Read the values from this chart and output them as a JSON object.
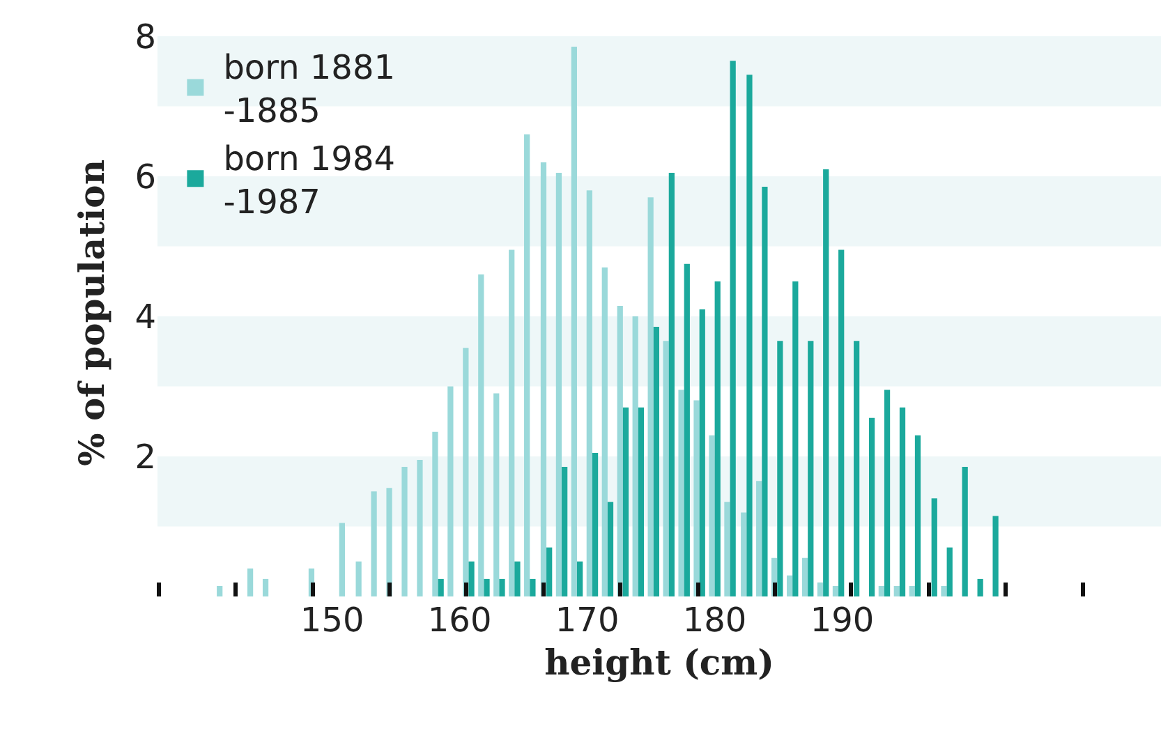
{
  "chart_data": {
    "type": "bar",
    "xlabel": "height (cm)",
    "ylabel": "% of population",
    "x": [
      141.4,
      142.6,
      143.8,
      145.0,
      146.2,
      147.4,
      148.6,
      149.8,
      151.0,
      152.3,
      153.5,
      154.7,
      155.9,
      157.1,
      158.3,
      159.5,
      160.7,
      161.9,
      163.1,
      164.3,
      165.5,
      166.8,
      168.0,
      169.2,
      170.4,
      171.6,
      172.8,
      174.0,
      175.2,
      176.4,
      177.6,
      178.8,
      180.0,
      181.2,
      182.5,
      183.7,
      184.9,
      186.1,
      187.3,
      188.5,
      189.7,
      190.9,
      192.1,
      193.3,
      194.5,
      195.7,
      197.0,
      198.2,
      199.4,
      200.6,
      201.8
    ],
    "series": [
      {
        "name": "born 1881\n-1885",
        "color": "#9ad9da",
        "values": [
          0.15,
          null,
          0.4,
          0.25,
          null,
          null,
          0.4,
          null,
          1.05,
          0.5,
          1.5,
          1.55,
          1.85,
          1.95,
          2.35,
          3.0,
          3.55,
          4.6,
          2.9,
          4.95,
          6.6,
          6.2,
          6.05,
          7.85,
          5.8,
          4.7,
          4.15,
          4.0,
          5.7,
          3.65,
          2.95,
          2.8,
          2.3,
          1.35,
          1.2,
          1.65,
          0.55,
          0.3,
          0.55,
          0.2,
          0.15,
          null,
          null,
          0.15,
          0.15,
          0.15,
          null,
          0.15,
          null,
          null,
          null
        ]
      },
      {
        "name": "born 1984\n-1987",
        "color": "#1ba99c",
        "values": [
          null,
          null,
          null,
          null,
          null,
          null,
          null,
          null,
          null,
          null,
          null,
          null,
          null,
          null,
          0.25,
          null,
          0.5,
          0.25,
          0.25,
          0.5,
          0.25,
          0.7,
          1.85,
          0.5,
          2.05,
          1.35,
          2.7,
          2.7,
          3.85,
          6.05,
          4.75,
          4.1,
          4.5,
          7.65,
          7.45,
          5.85,
          3.65,
          4.5,
          3.65,
          6.1,
          4.95,
          3.65,
          2.55,
          2.95,
          2.7,
          2.3,
          1.4,
          0.7,
          1.85,
          0.25,
          1.15
        ]
      }
    ],
    "xlim": [
      136.3,
      215.0
    ],
    "xticks": [
      150,
      160,
      170,
      180,
      190,
      {
        "value": 136.4,
        "label": null
      },
      {
        "value": 142.4,
        "label": null
      },
      {
        "value": 148.5,
        "label": null
      },
      {
        "value": 154.5,
        "label": null
      },
      {
        "value": 160.5,
        "label": null
      },
      {
        "value": 166.6,
        "label": null
      },
      {
        "value": 172.6,
        "label": null
      },
      {
        "value": 178.7,
        "label": null
      },
      {
        "value": 184.7,
        "label": null
      },
      {
        "value": 190.7,
        "label": null
      },
      {
        "value": 196.8,
        "label": null
      },
      {
        "value": 202.8,
        "label": null
      },
      {
        "value": 208.9,
        "label": null
      }
    ],
    "ylim": [
      0,
      8.1
    ],
    "yticks": [
      2,
      4,
      6,
      8
    ],
    "bands": [
      {
        "axis": "y",
        "from": 1,
        "to": 2,
        "color": "#eef7f8"
      },
      {
        "axis": "y",
        "from": 3,
        "to": 4,
        "color": "#eef7f8"
      },
      {
        "axis": "y",
        "from": 5,
        "to": 6,
        "color": "#eef7f8"
      },
      {
        "axis": "y",
        "from": 7,
        "to": 8,
        "color": "#eef7f8"
      }
    ],
    "legend": "top left",
    "grid": false
  }
}
